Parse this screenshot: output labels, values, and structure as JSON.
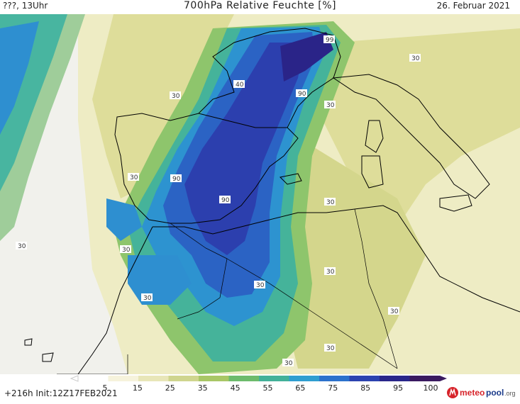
{
  "header": {
    "left": "???, 13Uhr",
    "title": "700hPa Relative Feuchte [%]",
    "date": "26. Februar 2021"
  },
  "footer": {
    "init": "+216h  Init:12Z17FEB2021"
  },
  "logo": {
    "prefix": "meteo",
    "suffix": "pool",
    "tld": ".org"
  },
  "colorbar": {
    "ticks": [
      "5",
      "15",
      "25",
      "35",
      "45",
      "55",
      "65",
      "75",
      "85",
      "95",
      "100"
    ],
    "colors": [
      "#ffffff",
      "#f6f3dc",
      "#e8e6b8",
      "#cfd58e",
      "#a9c766",
      "#6dbb6c",
      "#43b199",
      "#2f9ed0",
      "#2c72cc",
      "#2c43b0",
      "#29268a",
      "#3a1a60"
    ]
  },
  "contour_labels": [
    "99",
    "40",
    "90",
    "30",
    "30",
    "30",
    "90",
    "90",
    "30",
    "30",
    "30",
    "30",
    "30",
    "30",
    "30",
    "30",
    "30",
    "30"
  ]
}
